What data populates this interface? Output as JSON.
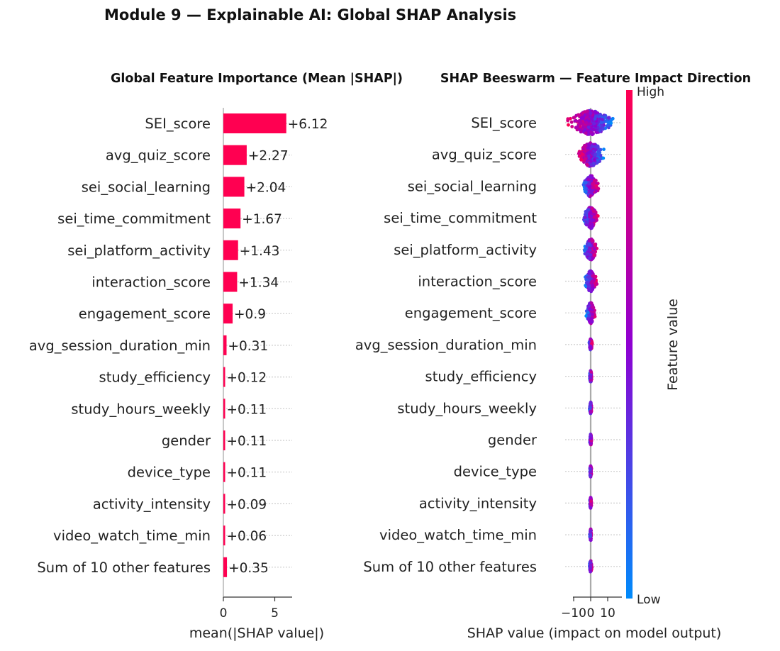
{
  "figure_title": "Module 9 — Explainable AI: Global SHAP Analysis",
  "colors": {
    "bar": "#ff0051",
    "grid": "#cccccc",
    "axis": "#333333",
    "high": "#ff0052",
    "mid": "#8f00d2",
    "low": "#008bfb"
  },
  "chart_data": [
    {
      "type": "bar",
      "orientation": "horizontal",
      "title": "Global Feature Importance (Mean |SHAP|)",
      "xlabel": "mean(|SHAP value|)",
      "ylabel": "",
      "xlim": [
        0,
        7
      ],
      "xticks": [
        0,
        5
      ],
      "categories": [
        "SEI_score",
        "avg_quiz_score",
        "sei_social_learning",
        "sei_time_commitment",
        "sei_platform_activity",
        "interaction_score",
        "engagement_score",
        "avg_session_duration_min",
        "study_efficiency",
        "study_hours_weekly",
        "gender",
        "device_type",
        "activity_intensity",
        "video_watch_time_min",
        "Sum of 10 other features"
      ],
      "values": [
        6.12,
        2.27,
        2.04,
        1.67,
        1.43,
        1.34,
        0.9,
        0.31,
        0.12,
        0.11,
        0.11,
        0.11,
        0.09,
        0.06,
        0.35
      ],
      "labels": [
        "+6.12",
        "+2.27",
        "+2.04",
        "+1.67",
        "+1.43",
        "+1.34",
        "+0.9",
        "+0.31",
        "+0.12",
        "+0.11",
        "+0.11",
        "+0.11",
        "+0.09",
        "+0.06",
        "+0.35"
      ],
      "grid": true
    },
    {
      "type": "scatter",
      "subtype": "beeswarm",
      "title": "SHAP Beeswarm — Feature Impact Direction",
      "xlabel": "SHAP value (impact on model output)",
      "xlim": [
        -13,
        17
      ],
      "xticks": [
        -10,
        0,
        10
      ],
      "xtick_labels": [
        "−10",
        "0",
        "10"
      ],
      "categories": [
        "SEI_score",
        "avg_quiz_score",
        "sei_social_learning",
        "sei_time_commitment",
        "sei_platform_activity",
        "interaction_score",
        "engagement_score",
        "avg_session_duration_min",
        "study_efficiency",
        "study_hours_weekly",
        "gender",
        "device_type",
        "activity_intensity",
        "video_watch_time_min",
        "Sum of 10 other features"
      ],
      "spread": [
        13.5,
        8.0,
        4.5,
        4.5,
        4.0,
        3.5,
        2.5,
        1.0,
        0.8,
        0.7,
        0.6,
        0.6,
        0.6,
        0.6,
        0.8
      ],
      "colorbar": {
        "label": "Feature value",
        "high": "High",
        "low": "Low"
      },
      "grid": true
    }
  ]
}
